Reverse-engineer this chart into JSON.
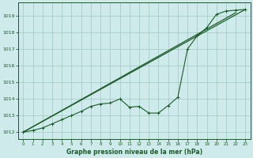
{
  "title": "Graphe pression niveau de la mer (hPa)",
  "background_color": "#ceeaea",
  "grid_color": "#a0c8c0",
  "line_color": "#1a5c28",
  "xlim": [
    -0.5,
    23.5
  ],
  "ylim": [
    1011.6,
    1019.8
  ],
  "yticks": [
    1012,
    1013,
    1014,
    1015,
    1016,
    1017,
    1018,
    1019
  ],
  "xticks": [
    0,
    1,
    2,
    3,
    4,
    5,
    6,
    7,
    8,
    9,
    10,
    11,
    12,
    13,
    14,
    15,
    16,
    17,
    18,
    19,
    20,
    21,
    22,
    23
  ],
  "series_marker": {
    "x": [
      0,
      1,
      2,
      3,
      4,
      5,
      6,
      7,
      8,
      9,
      10,
      11,
      12,
      13,
      14,
      15,
      16,
      17,
      18,
      19,
      20,
      21,
      22,
      23
    ],
    "y": [
      1012.0,
      1012.1,
      1012.25,
      1012.5,
      1012.75,
      1013.0,
      1013.25,
      1013.55,
      1013.7,
      1013.75,
      1014.0,
      1013.5,
      1013.55,
      1013.15,
      1013.15,
      1013.6,
      1014.1,
      1017.0,
      1017.8,
      1018.3,
      1019.1,
      1019.3,
      1019.35,
      1019.4
    ]
  },
  "series_line1": {
    "x": [
      0,
      23
    ],
    "y": [
      1012.0,
      1019.4
    ]
  },
  "series_line2": {
    "x": [
      0,
      22
    ],
    "y": [
      1012.0,
      1019.2
    ]
  },
  "figsize": [
    3.2,
    2.0
  ],
  "dpi": 100
}
